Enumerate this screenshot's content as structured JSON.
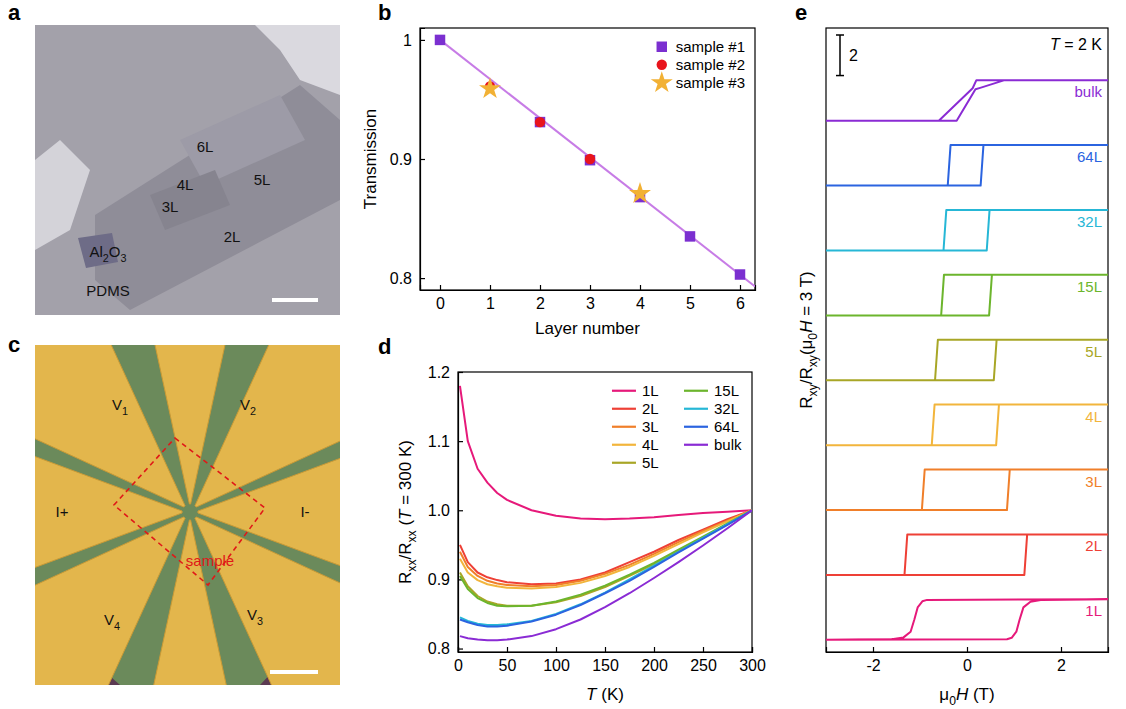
{
  "chart_data": [
    {
      "panel": "b",
      "type": "scatter",
      "x_label": "Layer number",
      "y_label": "Transmission",
      "xlim": [
        -0.4,
        6.3
      ],
      "ylim": [
        0.79,
        1.01
      ],
      "xticks": [
        0,
        1,
        2,
        3,
        4,
        5,
        6
      ],
      "yticks": [
        0.8,
        0.9,
        1
      ],
      "legend": "upper right",
      "series": [
        {
          "type": "line",
          "color": "#c77ce6",
          "line_style": "solid",
          "x": [
            0,
            6.3
          ],
          "values": [
            1,
            0.793
          ]
        },
        {
          "name": "sample #1",
          "color": "#7b2fd0",
          "marker": "square",
          "x": [
            0,
            2,
            3,
            4,
            5,
            6
          ],
          "values": [
            1,
            0.931,
            0.899,
            0.868,
            0.835,
            0.803
          ]
        },
        {
          "name": "sample #2",
          "color": "#e8141c",
          "marker": "circle",
          "x": [
            1,
            2,
            3
          ],
          "values": [
            0.961,
            0.931,
            0.9
          ]
        },
        {
          "name": "sample #3",
          "color": "#f2b134",
          "marker": "star",
          "x": [
            1,
            4
          ],
          "values": [
            0.959,
            0.871
          ]
        }
      ]
    },
    {
      "panel": "d",
      "type": "line",
      "x_label": "T (K)",
      "y_label": "Rxx/Rxx (T = 300 K)",
      "x": [
        2,
        10,
        20,
        30,
        40,
        50,
        75,
        100,
        125,
        150,
        175,
        200,
        225,
        250,
        275,
        300
      ],
      "xlim": [
        0,
        300
      ],
      "ylim": [
        0.795,
        1.2
      ],
      "xticks": [
        0,
        50,
        100,
        150,
        200,
        250,
        300
      ],
      "yticks": [
        0.8,
        0.9,
        {
          "value": 1,
          "label": "1.0"
        },
        1.1,
        1.2
      ],
      "legend": "upper right",
      "series": [
        {
          "name": "1L",
          "color": "#e6197a",
          "values": [
            1.18,
            1.1,
            1.06,
            1.04,
            1.025,
            1.015,
            1.0,
            0.992,
            0.988,
            0.987,
            0.988,
            0.99,
            0.993,
            0.996,
            0.998,
            1.0
          ]
        },
        {
          "name": "2L",
          "color": "#ee4036",
          "values": [
            0.95,
            0.925,
            0.91,
            0.903,
            0.899,
            0.896,
            0.893,
            0.894,
            0.9,
            0.91,
            0.925,
            0.94,
            0.957,
            0.972,
            0.987,
            1.0
          ]
        },
        {
          "name": "3L",
          "color": "#f07f2a",
          "values": [
            0.94,
            0.918,
            0.905,
            0.898,
            0.894,
            0.892,
            0.89,
            0.892,
            0.898,
            0.908,
            0.921,
            0.937,
            0.954,
            0.97,
            0.985,
            1.0
          ]
        },
        {
          "name": "4L",
          "color": "#f2b53c",
          "values": [
            0.93,
            0.91,
            0.899,
            0.893,
            0.89,
            0.888,
            0.887,
            0.889,
            0.895,
            0.905,
            0.918,
            0.934,
            0.951,
            0.968,
            0.984,
            1.0
          ]
        },
        {
          "name": "5L",
          "color": "#a8a626",
          "values": [
            0.91,
            0.89,
            0.876,
            0.868,
            0.864,
            0.862,
            0.862,
            0.867,
            0.876,
            0.889,
            0.905,
            0.922,
            0.941,
            0.96,
            0.98,
            1.0
          ]
        },
        {
          "name": "15L",
          "color": "#6cb52d",
          "values": [
            0.905,
            0.886,
            0.873,
            0.866,
            0.862,
            0.861,
            0.862,
            0.868,
            0.878,
            0.891,
            0.907,
            0.924,
            0.943,
            0.962,
            0.981,
            1.0
          ]
        },
        {
          "name": "32L",
          "color": "#26b7d6",
          "values": [
            0.845,
            0.84,
            0.836,
            0.834,
            0.834,
            0.835,
            0.84,
            0.85,
            0.864,
            0.881,
            0.9,
            0.92,
            0.94,
            0.96,
            0.98,
            1.0
          ]
        },
        {
          "name": "64L",
          "color": "#2b64e0",
          "values": [
            0.842,
            0.838,
            0.834,
            0.832,
            0.832,
            0.833,
            0.839,
            0.849,
            0.863,
            0.88,
            0.898,
            0.918,
            0.939,
            0.959,
            0.979,
            1.0
          ]
        },
        {
          "name": "bulk",
          "color": "#8a2bd4",
          "values": [
            0.818,
            0.815,
            0.813,
            0.812,
            0.812,
            0.813,
            0.818,
            0.828,
            0.842,
            0.86,
            0.88,
            0.902,
            0.925,
            0.949,
            0.974,
            1.0
          ]
        }
      ]
    },
    {
      "panel": "e",
      "type": "line",
      "x_label": "μ0H (T)",
      "y_label": "Rxy/Rxy(μ0H = 3 T)",
      "xlim": [
        -3,
        3
      ],
      "ylim": [
        -1.6,
        1.6
      ],
      "xticks": [
        -2,
        0,
        2
      ],
      "tick_labels": "x",
      "scale_bar": 2,
      "annotations": [
        "T = 2 K"
      ],
      "series": [
        {
          "name": "1L",
          "color": "#e6197a",
          "x": [
            -3,
            0.85,
            0.95,
            1.05,
            1.12,
            1.2,
            1.35,
            1.6,
            3,
            -0.85,
            -0.95,
            -1.05,
            -1.12,
            -1.2,
            -1.35,
            -1.6,
            -3
          ],
          "values": [
            -1,
            -0.97,
            -0.9,
            -0.6,
            0,
            0.6,
            0.88,
            0.97,
            1,
            0.97,
            0.9,
            0.6,
            0,
            -0.6,
            -0.88,
            -0.97,
            -1
          ]
        },
        {
          "name": "2L",
          "color": "#ee4036",
          "x": [
            -3,
            1.22,
            1.28,
            3,
            -1.27,
            -1.33,
            -3
          ],
          "values": [
            -1,
            -1,
            1,
            1,
            1,
            -1,
            -1
          ]
        },
        {
          "name": "3L",
          "color": "#f07f2a",
          "x": [
            -3,
            0.85,
            0.91,
            3,
            -0.9,
            -0.96,
            -3
          ],
          "values": [
            -1,
            -1,
            1,
            1,
            1,
            -1,
            -1
          ]
        },
        {
          "name": "4L",
          "color": "#f2b53c",
          "x": [
            -3,
            0.62,
            0.68,
            3,
            -0.69,
            -0.75,
            -3
          ],
          "values": [
            -1,
            -1,
            1,
            1,
            1,
            -1,
            -1
          ]
        },
        {
          "name": "5L",
          "color": "#a8a626",
          "x": [
            -3,
            0.57,
            0.63,
            3,
            -0.62,
            -0.68,
            -3
          ],
          "values": [
            -1,
            -1,
            1,
            1,
            1,
            -1,
            -1
          ]
        },
        {
          "name": "15L",
          "color": "#6cb52d",
          "x": [
            -3,
            0.47,
            0.53,
            3,
            -0.49,
            -0.55,
            -3
          ],
          "values": [
            -1,
            -1,
            1,
            1,
            1,
            -1,
            -1
          ]
        },
        {
          "name": "32L",
          "color": "#26b7d6",
          "x": [
            -3,
            0.42,
            0.48,
            3,
            -0.44,
            -0.5,
            -3
          ],
          "values": [
            -1,
            -1,
            1,
            1,
            1,
            -1,
            -1
          ]
        },
        {
          "name": "64L",
          "color": "#2b64e0",
          "x": [
            -3,
            0.29,
            0.35,
            3,
            -0.35,
            -0.41,
            -3
          ],
          "values": [
            -1,
            -1,
            1,
            1,
            1,
            -1,
            -1
          ]
        },
        {
          "name": "bulk",
          "color": "#8a2bd4",
          "x": [
            -3,
            -0.22,
            0.18,
            0.28,
            0.8,
            3,
            0.2,
            0.12,
            -0.6,
            -3
          ],
          "values": [
            -1,
            -1,
            0.55,
            0.62,
            1,
            1,
            1,
            0.6,
            -1,
            -1
          ]
        }
      ]
    }
  ],
  "images": [
    {
      "panel": "a",
      "labels": [
        "6L",
        "5L",
        "4L",
        "3L",
        "2L",
        "Al2O3",
        "PDMS"
      ]
    },
    {
      "panel": "c",
      "labels": [
        "V1",
        "V2",
        "I+",
        "I-",
        "V4",
        "V3",
        "sample"
      ]
    }
  ]
}
